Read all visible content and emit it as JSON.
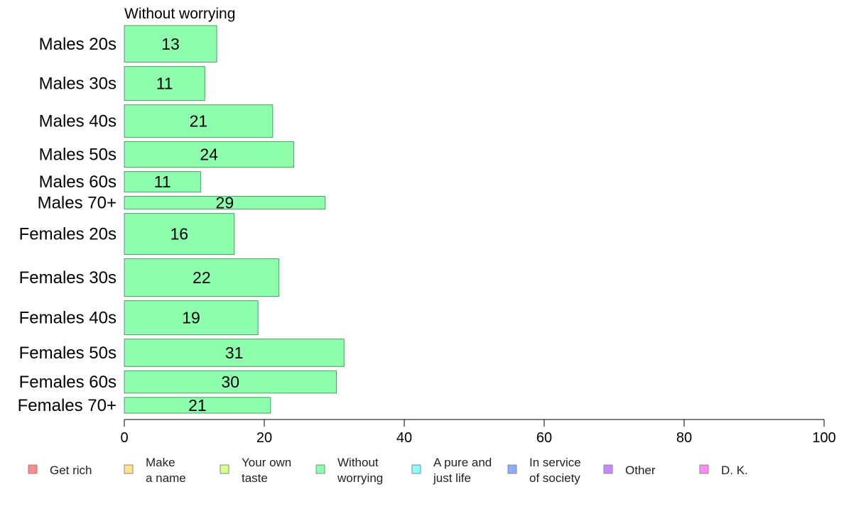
{
  "chart_data": {
    "type": "bar",
    "orientation": "horizontal",
    "title": "Without worrying",
    "categories": [
      "Males 20s",
      "Males 30s",
      "Males 40s",
      "Males 50s",
      "Males 60s",
      "Males 70+",
      "Females 20s",
      "Females 30s",
      "Females 40s",
      "Females 50s",
      "Females 60s",
      "Females 70+"
    ],
    "values": [
      13,
      11,
      21,
      24,
      11,
      29,
      16,
      22,
      19,
      31,
      30,
      21
    ],
    "bar_values": [
      13.2,
      11.5,
      21.2,
      24.2,
      10.9,
      28.7,
      15.7,
      22.1,
      19.1,
      31.4,
      30.3,
      20.9
    ],
    "group_sizes": [
      1.0,
      0.93,
      0.89,
      0.7,
      0.56,
      0.35,
      1.12,
      1.03,
      0.93,
      0.75,
      0.61,
      0.43
    ],
    "xlim": [
      0,
      100
    ],
    "x_ticks": [
      0,
      20,
      40,
      60,
      80,
      100
    ],
    "xlabel": "",
    "ylabel": "",
    "grid": false,
    "bar_color": "#8dffad",
    "bar_stroke": "#4f9a64",
    "legend": {
      "placement": "bottom",
      "items": [
        {
          "label": [
            "Get rich"
          ],
          "color": "#ff8c8c"
        },
        {
          "label": [
            "Make",
            "a name"
          ],
          "color": "#ffe08c"
        },
        {
          "label": [
            "Your own",
            "taste"
          ],
          "color": "#d8ff8c"
        },
        {
          "label": [
            "Without",
            "worrying"
          ],
          "color": "#8cffad"
        },
        {
          "label": [
            "A pure and",
            "just life"
          ],
          "color": "#8cfdff"
        },
        {
          "label": [
            "In service",
            "of society"
          ],
          "color": "#8cadff"
        },
        {
          "label": [
            "Other"
          ],
          "color": "#c28cff"
        },
        {
          "label": [
            "D. K."
          ],
          "color": "#ff8cf0"
        }
      ]
    }
  }
}
